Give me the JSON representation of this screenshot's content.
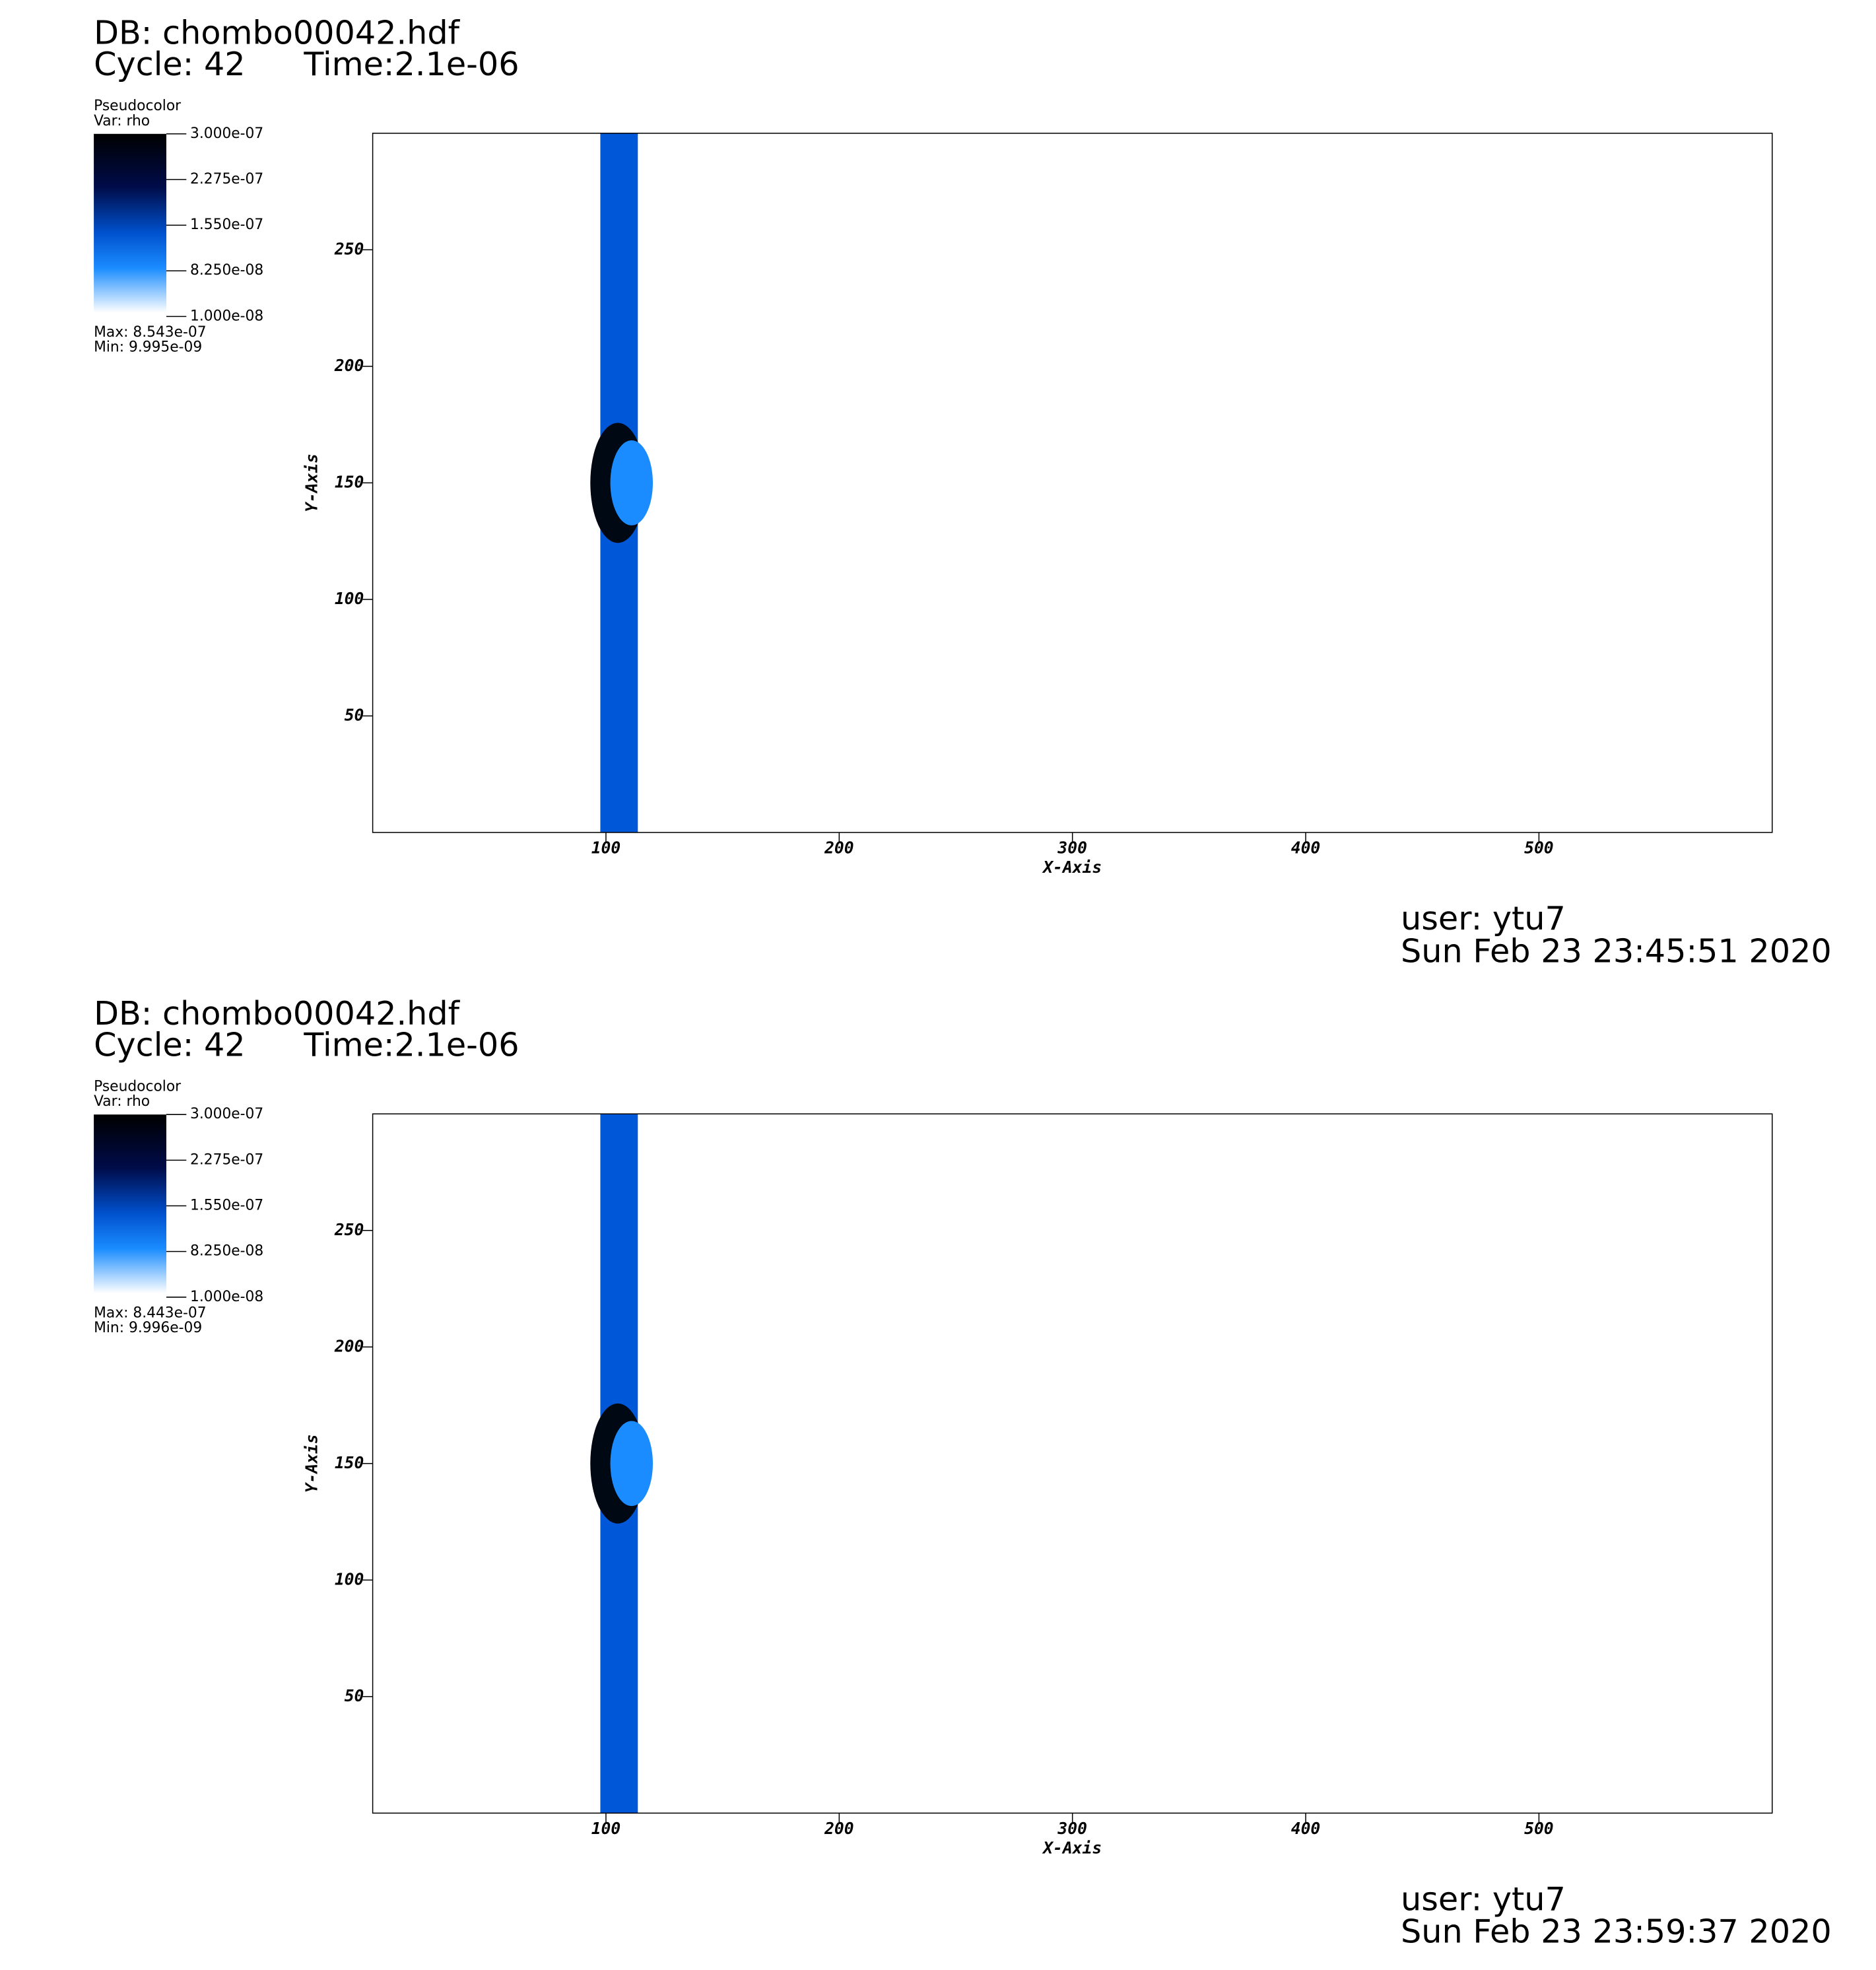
{
  "chart_data": [
    {
      "type": "pseudocolor",
      "title": "DB: chombo00042.hdf",
      "cycle": "Cycle: 42",
      "time": "Time:2.1e-06",
      "legend": {
        "title": "Pseudocolor",
        "var": "Var: rho",
        "ticks": [
          {
            "value": 3e-07,
            "label": "3.000e-07"
          },
          {
            "value": 2.275e-07,
            "label": "2.275e-07"
          },
          {
            "value": 1.55e-07,
            "label": "1.550e-07"
          },
          {
            "value": 8.25e-08,
            "label": "8.250e-08"
          },
          {
            "value": 1e-08,
            "label": "1.000e-08"
          }
        ],
        "max": "Max:  8.543e-07",
        "min": "Min:  9.995e-09"
      },
      "xlabel": "X-Axis",
      "ylabel": "Y-Axis",
      "xlim": [
        0,
        600
      ],
      "ylim": [
        0,
        300
      ],
      "xticks": [
        100,
        200,
        300,
        400,
        500
      ],
      "yticks": [
        50,
        100,
        150,
        200,
        250
      ],
      "user": "user: ytu7",
      "date": "Sun Feb 23 23:45:51 2020"
    },
    {
      "type": "pseudocolor",
      "title": "DB: chombo00042.hdf",
      "cycle": "Cycle: 42",
      "time": "Time:2.1e-06",
      "legend": {
        "title": "Pseudocolor",
        "var": "Var: rho",
        "ticks": [
          {
            "value": 3e-07,
            "label": "3.000e-07"
          },
          {
            "value": 2.275e-07,
            "label": "2.275e-07"
          },
          {
            "value": 1.55e-07,
            "label": "1.550e-07"
          },
          {
            "value": 8.25e-08,
            "label": "8.250e-08"
          },
          {
            "value": 1e-08,
            "label": "1.000e-08"
          }
        ],
        "max": "Max:  8.443e-07",
        "min": "Min:  9.996e-09"
      },
      "xlabel": "X-Axis",
      "ylabel": "Y-Axis",
      "xlim": [
        0,
        600
      ],
      "ylim": [
        0,
        300
      ],
      "xticks": [
        100,
        200,
        300,
        400,
        500
      ],
      "yticks": [
        50,
        100,
        150,
        200,
        250
      ],
      "user": "user: ytu7",
      "date": "Sun Feb 23 23:59:37 2020"
    }
  ]
}
